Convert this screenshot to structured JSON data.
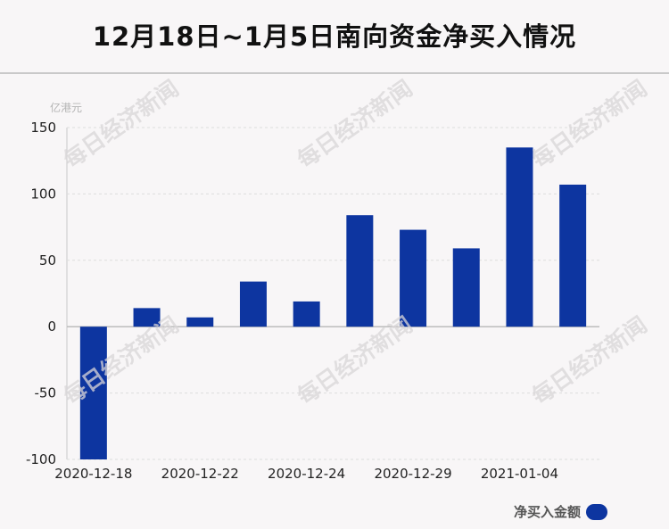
{
  "title": "12月18日~1月5日南向资金净买入情况",
  "watermark": "每日经济新闻",
  "colors": {
    "bar": "#0d35a0",
    "grid": "#dddddd",
    "axis": "#c8c8c8"
  },
  "chart_data": {
    "type": "bar",
    "unit": "亿港元",
    "categories": [
      "2020-12-18",
      "",
      "2020-12-22",
      "",
      "2020-12-24",
      "",
      "2020-12-29",
      "",
      "2021-01-04",
      ""
    ],
    "series": [
      {
        "name": "净买入金额",
        "values": [
          -100,
          14,
          7,
          34,
          19,
          84,
          73,
          59,
          135,
          107
        ]
      }
    ],
    "ylim": [
      -100,
      150
    ],
    "yticks": [
      150,
      100,
      50,
      0,
      -50,
      -100
    ],
    "grid": true,
    "legend": "bottom-right"
  }
}
